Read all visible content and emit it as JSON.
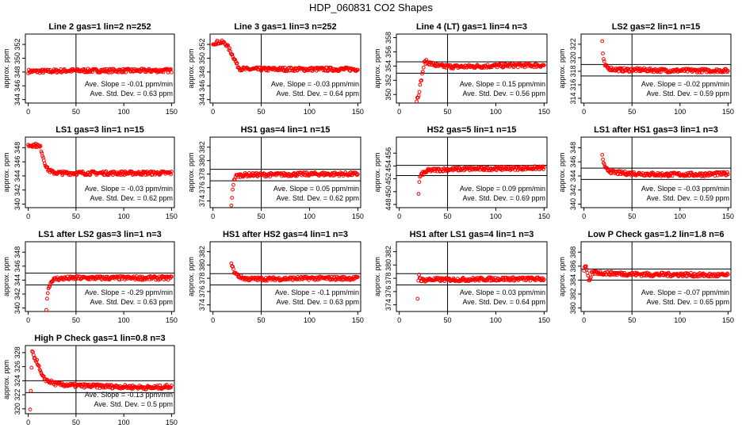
{
  "title": "HDP_060831  CO2 Shapes",
  "colors": {
    "points": "#ff0000",
    "axis": "#000000"
  },
  "chart_data": [
    {
      "type": "scatter",
      "title": "Line 2 gas=1 lin=2 n=252",
      "ylabel": "approx. ppm",
      "xlim": [
        0,
        150
      ],
      "xticks": [
        0,
        50,
        100,
        150
      ],
      "ylim": [
        343.5,
        353.5
      ],
      "yticks": [
        344,
        346,
        348,
        350,
        352
      ],
      "hlines": [],
      "vline": 50,
      "series": [
        {
          "x": [
            0,
            10,
            20,
            40,
            70,
            100,
            130,
            150
          ],
          "y": [
            348.1,
            348.1,
            348.1,
            348.2,
            348.2,
            348.2,
            348.2,
            348.2
          ]
        }
      ],
      "slope_label": "Ave. Slope = ",
      "slope": "-0.01",
      "slope_units": "ppm/min",
      "sd_label": "Ave. Std. Dev. = ",
      "sd": "0.63",
      "sd_units": "ppm"
    },
    {
      "type": "scatter",
      "title": "Line 3 gas=1 lin=3 n=252",
      "ylabel": "approx. ppm",
      "xlim": [
        0,
        150
      ],
      "xticks": [
        0,
        50,
        100,
        150
      ],
      "ylim": [
        343.5,
        353.5
      ],
      "yticks": [
        344,
        346,
        348,
        350,
        352
      ],
      "hlines": [],
      "vline": 50,
      "series": [
        {
          "x": [
            0,
            5,
            10,
            14,
            18,
            22,
            25,
            28,
            35,
            50,
            80,
            110,
            150
          ],
          "y": [
            352.2,
            352.3,
            352.3,
            352.0,
            351.0,
            350.0,
            349.0,
            348.5,
            348.4,
            348.4,
            348.4,
            348.4,
            348.4
          ]
        }
      ],
      "slope_label": "Ave. Slope = ",
      "slope": "-0.03",
      "slope_units": "ppm/min",
      "sd_label": "Ave. Std. Dev. = ",
      "sd": "0.64",
      "sd_units": "ppm"
    },
    {
      "type": "scatter",
      "title": "Line 4 (LT) gas=1 lin=4 n=3",
      "ylabel": "approx. ppm",
      "xlim": [
        0,
        150
      ],
      "xticks": [
        0,
        50,
        100,
        150
      ],
      "ylim": [
        348.8,
        358.5
      ],
      "yticks": [
        350,
        352,
        354,
        356,
        358
      ],
      "hlines": [
        354.6,
        353.0
      ],
      "vline": 50,
      "series": [
        {
          "x": [
            18,
            20,
            22,
            24,
            26,
            28,
            32,
            40,
            60,
            90,
            120,
            150
          ],
          "y": [
            349.2,
            350.0,
            351.5,
            353.0,
            354.5,
            354.6,
            354.4,
            354.0,
            353.9,
            354.0,
            354.1,
            354.1
          ]
        }
      ],
      "slope_label": "Ave. Slope = ",
      "slope": "0.15",
      "slope_units": "ppm/min",
      "sd_label": "Ave. Std. Dev. = ",
      "sd": "0.56",
      "sd_units": "ppm"
    },
    {
      "type": "scatter",
      "title": "LS2 gas=2 lin=1 n=15",
      "ylabel": "approx. ppm",
      "xlim": [
        0,
        150
      ],
      "xticks": [
        0,
        50,
        100,
        150
      ],
      "ylim": [
        313.3,
        323.5
      ],
      "yticks": [
        314,
        316,
        318,
        320,
        322
      ],
      "hlines": [
        319.0,
        317.3
      ],
      "vline": 50,
      "series": [
        {
          "x": [
            19,
            20,
            22,
            25,
            30,
            40,
            60,
            90,
            120,
            150
          ],
          "y": [
            322.5,
            319.8,
            318.8,
            318.5,
            318.3,
            318.2,
            318.2,
            318.1,
            318.1,
            318.1
          ]
        }
      ],
      "slope_label": "Ave. Slope = ",
      "slope": "-0.02",
      "slope_units": "ppm/min",
      "sd_label": "Ave. Std. Dev. = ",
      "sd": "0.59",
      "sd_units": "ppm"
    },
    {
      "type": "scatter",
      "title": "LS1 gas=3 lin=1 n=15",
      "ylabel": "approx. ppm",
      "xlim": [
        0,
        150
      ],
      "xticks": [
        0,
        50,
        100,
        150
      ],
      "ylim": [
        339.5,
        349.5
      ],
      "yticks": [
        340,
        342,
        344,
        346,
        348
      ],
      "hlines": [],
      "vline": 50,
      "series": [
        {
          "x": [
            0,
            5,
            10,
            13,
            15,
            17,
            20,
            25,
            35,
            60,
            100,
            150
          ],
          "y": [
            348.3,
            348.4,
            348.3,
            348.0,
            347.0,
            346.0,
            345.0,
            344.5,
            344.4,
            344.4,
            344.4,
            344.4
          ]
        }
      ],
      "slope_label": "Ave. Slope = ",
      "slope": "-0.03",
      "slope_units": "ppm/min",
      "sd_label": "Ave. Std. Dev. = ",
      "sd": "0.62",
      "sd_units": "ppm"
    },
    {
      "type": "scatter",
      "title": "HS1 gas=4 lin=1 n=15",
      "ylabel": "approx. ppm",
      "xlim": [
        0,
        150
      ],
      "xticks": [
        0,
        50,
        100,
        150
      ],
      "ylim": [
        373,
        383.5
      ],
      "yticks": [
        374,
        376,
        378,
        380,
        382
      ],
      "hlines": [
        378.7,
        377.0
      ],
      "vline": 50,
      "series": [
        {
          "x": [
            19,
            20,
            21,
            23,
            26,
            35,
            60,
            100,
            150
          ],
          "y": [
            373.2,
            375.2,
            376.5,
            377.6,
            377.8,
            377.9,
            377.9,
            378.0,
            378.0
          ]
        }
      ],
      "slope_label": "Ave. Slope = ",
      "slope": "0.05",
      "slope_units": "ppm/min",
      "sd_label": "Ave. Std. Dev. = ",
      "sd": "0.62",
      "sd_units": "ppm"
    },
    {
      "type": "scatter",
      "title": "HS2 gas=5 lin=1 n=15",
      "ylabel": "approx. ppm",
      "xlim": [
        0,
        150
      ],
      "xticks": [
        0,
        50,
        100,
        150
      ],
      "ylim": [
        447.5,
        458.5
      ],
      "yticks": [
        448,
        450,
        452,
        454,
        456
      ],
      "hlines": [
        454.1,
        452.5
      ],
      "vline": 50,
      "series": [
        {
          "x": [
            20,
            21,
            22,
            24,
            27,
            30,
            40,
            60,
            100,
            150
          ],
          "y": [
            449.8,
            452.0,
            452.5,
            452.8,
            453.0,
            453.3,
            453.4,
            453.5,
            453.6,
            453.7
          ]
        }
      ],
      "slope_label": "Ave. Slope = ",
      "slope": "0.09",
      "slope_units": "ppm/min",
      "sd_label": "Ave. Std. Dev. = ",
      "sd": "0.69",
      "sd_units": "ppm"
    },
    {
      "type": "scatter",
      "title": "LS1 after HS1 gas=3 lin=1 n=3",
      "ylabel": "approx. ppm",
      "xlim": [
        0,
        150
      ],
      "xticks": [
        0,
        50,
        100,
        150
      ],
      "ylim": [
        339.5,
        349.5
      ],
      "yticks": [
        340,
        342,
        344,
        346,
        348
      ],
      "hlines": [
        345.1,
        343.5
      ],
      "vline": 50,
      "series": [
        {
          "x": [
            19,
            22,
            26,
            30,
            40,
            60,
            80,
            100,
            120,
            150
          ],
          "y": [
            346.8,
            345.0,
            344.8,
            344.5,
            344.4,
            344.3,
            344.2,
            344.2,
            344.2,
            344.3
          ]
        }
      ],
      "slope_label": "Ave. Slope = ",
      "slope": "-0.03",
      "slope_units": "ppm/min",
      "sd_label": "Ave. Std. Dev. = ",
      "sd": "0.59",
      "sd_units": "ppm"
    },
    {
      "type": "scatter",
      "title": "LS1 after LS2 gas=3 lin=1 n=3",
      "ylabel": "approx. ppm",
      "xlim": [
        0,
        150
      ],
      "xticks": [
        0,
        50,
        100,
        150
      ],
      "ylim": [
        339.5,
        349.5
      ],
      "yticks": [
        340,
        342,
        344,
        346,
        348
      ],
      "hlines": [
        345.0,
        343.3
      ],
      "vline": 50,
      "series": [
        {
          "x": [
            19,
            20,
            22,
            25,
            30,
            50,
            80,
            110,
            150
          ],
          "y": [
            339.7,
            342.0,
            343.2,
            344.0,
            344.2,
            344.3,
            344.3,
            344.3,
            344.3
          ]
        }
      ],
      "slope_label": "Ave. Slope = ",
      "slope": "-0.29",
      "slope_units": "ppm/min",
      "sd_label": "Ave. Std. Dev. = ",
      "sd": "0.63",
      "sd_units": "ppm"
    },
    {
      "type": "scatter",
      "title": "HS1 after HS2 gas=4 lin=1 n=3",
      "ylabel": "approx. ppm",
      "xlim": [
        0,
        150
      ],
      "xticks": [
        0,
        50,
        100,
        150
      ],
      "ylim": [
        373,
        383.5
      ],
      "yticks": [
        374,
        376,
        378,
        380,
        382
      ],
      "hlines": [
        378.7,
        377.0
      ],
      "vline": 50,
      "series": [
        {
          "x": [
            19,
            21,
            24,
            28,
            35,
            60,
            100,
            150
          ],
          "y": [
            380.5,
            379.2,
            378.6,
            378.2,
            377.9,
            377.9,
            378.0,
            378.0
          ]
        }
      ],
      "slope_label": "Ave. Slope = ",
      "slope": "-0.1",
      "slope_units": "ppm/min",
      "sd_label": "Ave. Std. Dev. = ",
      "sd": "0.63",
      "sd_units": "ppm"
    },
    {
      "type": "scatter",
      "title": "HS1 after LS1 gas=4 lin=1 n=3",
      "ylabel": "approx. ppm",
      "xlim": [
        0,
        150
      ],
      "xticks": [
        0,
        50,
        100,
        150
      ],
      "ylim": [
        373,
        383.5
      ],
      "yticks": [
        374,
        376,
        378,
        380,
        382
      ],
      "hlines": [
        378.7,
        377.0
      ],
      "vline": 50,
      "series": [
        {
          "x": [
            19,
            20,
            22,
            25,
            30,
            60,
            100,
            150
          ],
          "y": [
            375.0,
            378.8,
            377.8,
            377.7,
            377.8,
            377.8,
            377.9,
            377.9
          ]
        }
      ],
      "slope_label": "Ave. Slope = ",
      "slope": "0.03",
      "slope_units": "ppm/min",
      "sd_label": "Ave. Std. Dev. = ",
      "sd": "0.64",
      "sd_units": "ppm"
    },
    {
      "type": "scatter",
      "title": "Low P Check gas=1.2 lin=1.8 n=6",
      "ylabel": "approx. ppm",
      "xlim": [
        0,
        150
      ],
      "xticks": [
        0,
        50,
        100,
        150
      ],
      "ylim": [
        379.5,
        389.5
      ],
      "yticks": [
        380,
        382,
        384,
        386,
        388
      ],
      "hlines": [
        385.6,
        384.0
      ],
      "vline": 50,
      "series": [
        {
          "x": [
            0,
            2,
            4,
            6,
            8,
            12,
            20,
            40,
            70,
            100,
            130,
            150
          ],
          "y": [
            385.5,
            386.3,
            384.5,
            383.6,
            385.0,
            385.1,
            385.0,
            384.9,
            384.8,
            384.8,
            384.7,
            384.7
          ]
        }
      ],
      "slope_label": "Ave. Slope = ",
      "slope": "-0.07",
      "slope_units": "ppm/min",
      "sd_label": "Ave. Std. Dev. = ",
      "sd": "0.65",
      "sd_units": "ppm"
    },
    {
      "type": "scatter",
      "title": "High P Check gas=1 lin=0.8 n=3",
      "ylabel": "approx. ppm",
      "xlim": [
        0,
        150
      ],
      "xticks": [
        0,
        50,
        100,
        150
      ],
      "ylim": [
        319.3,
        329
      ],
      "yticks": [
        320,
        322,
        324,
        326,
        328
      ],
      "hlines": [
        324.0,
        322.3
      ],
      "vline": 50,
      "series": [
        {
          "x": [
            2,
            4,
            6,
            8,
            10,
            12,
            15,
            20,
            30,
            50,
            80,
            110,
            130,
            150
          ],
          "y": [
            319.8,
            328.0,
            327.5,
            327.0,
            326.5,
            325.5,
            324.5,
            324.0,
            323.5,
            323.3,
            323.2,
            323.1,
            323.0,
            323.2
          ]
        }
      ],
      "slope_label": "Ave. Slope = ",
      "slope": "-0.13",
      "slope_units": "ppm/min",
      "sd_label": "Ave. Std. Dev. = ",
      "sd": "0.5",
      "sd_units": "ppm"
    }
  ]
}
